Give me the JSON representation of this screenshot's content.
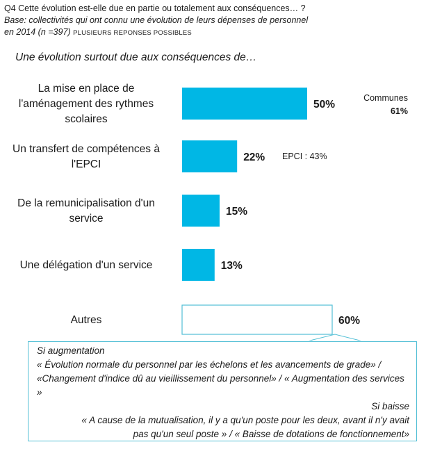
{
  "header": {
    "question": "Q4 Cette évolution est-elle due en partie ou totalement aux conséquences… ?",
    "base_line1": "Base: collectivités qui ont connu une évolution de leurs dépenses de personnel",
    "base_line2": "en 2014 (n =397)",
    "base_caps": "PLUSIEURS REPONSES POSSIBLES"
  },
  "subtitle": "Une évolution surtout due aux conséquences de…",
  "colors": {
    "bar": "#00b7e5",
    "outline": "#52bfd5",
    "text": "#1a1a1a"
  },
  "chart_data": {
    "type": "bar",
    "orientation": "horizontal",
    "title": "Une évolution surtout due aux conséquences de…",
    "xlabel": "",
    "ylabel": "",
    "xlim": [
      0,
      100
    ],
    "categories": [
      "La mise en place de l'aménagement des rythmes scolaires",
      "Un transfert de compétences à l'EPCI",
      "De la remunicipalisation d'un service",
      "Une délégation d'un service",
      "Autres"
    ],
    "category_lines": [
      [
        "La mise en place de",
        "l'aménagement des rythmes",
        "scolaires"
      ],
      [
        "Un transfert de compétences à",
        "l'EPCI"
      ],
      [
        "De la remunicipalisation d'un",
        "service"
      ],
      [
        "Une délégation d'un service"
      ],
      [
        "Autres"
      ]
    ],
    "values": [
      50,
      22,
      15,
      13,
      60
    ],
    "value_labels": [
      "50%",
      "22%",
      "15%",
      "13%",
      "60%"
    ],
    "bar_style": [
      "filled",
      "filled",
      "filled",
      "filled",
      "outline"
    ],
    "annotations": [
      {
        "category_index": 0,
        "lines": [
          "Communes",
          "61%"
        ]
      },
      {
        "category_index": 1,
        "lines": [
          "EPCI : 43%"
        ]
      }
    ],
    "grid": false,
    "legend": "none"
  },
  "callout": {
    "increase_title": "Si augmentation",
    "increase_text": "« Évolution normale du personnel  par les échelons et les avancements de grade» / «Changement d'indice dû au vieillissement du personnel» / « Augmentation des services »",
    "decrease_title": "Si baisse",
    "decrease_text": "« A cause de la mutualisation, il y a qu'un poste pour les deux, avant il n'y avait pas qu'un seul poste » / « Baisse de dotations de fonctionnement»"
  }
}
